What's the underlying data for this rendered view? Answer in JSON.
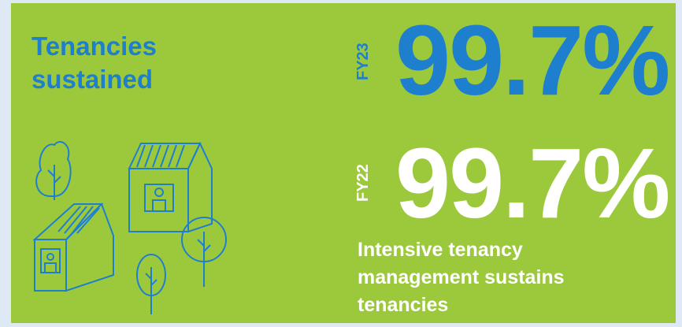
{
  "title": "Tenancies sustained",
  "stats": [
    {
      "period": "FY23",
      "value": "99.7%"
    },
    {
      "period": "FY22",
      "value": "99.7%"
    }
  ],
  "description": "Intensive tenancy management sustains tenancies"
}
